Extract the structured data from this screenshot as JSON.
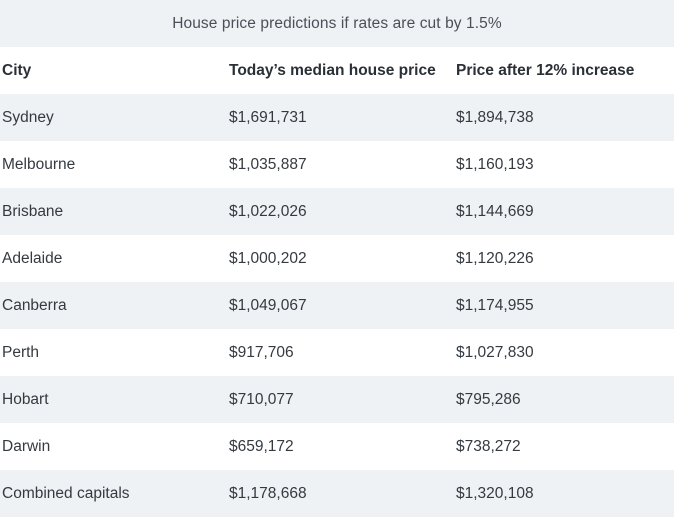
{
  "caption": "House price predictions if rates are cut by 1.5%",
  "columns": [
    "City",
    "Today’s median house price",
    "Price after 12% increase"
  ],
  "rows": [
    [
      "Sydney",
      "$1,691,731",
      "$1,894,738"
    ],
    [
      "Melbourne",
      "$1,035,887",
      "$1,160,193"
    ],
    [
      "Brisbane",
      "$1,022,026",
      "$1,144,669"
    ],
    [
      "Adelaide",
      "$1,000,202",
      "$1,120,226"
    ],
    [
      "Canberra",
      "$1,049,067",
      "$1,174,955"
    ],
    [
      "Perth",
      "$917,706",
      "$1,027,830"
    ],
    [
      "Hobart",
      "$710,077",
      "$795,286"
    ],
    [
      "Darwin",
      "$659,172",
      "$738,272"
    ],
    [
      "Combined capitals",
      "$1,178,668",
      "$1,320,108"
    ]
  ],
  "colors": {
    "stripe": "#eef2f4",
    "text": "#2b3036"
  }
}
